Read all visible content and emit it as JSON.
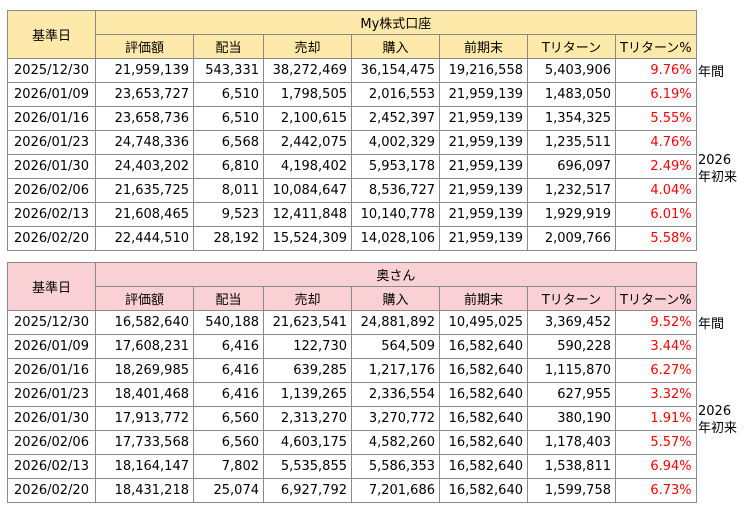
{
  "tables": [
    {
      "title": "My株式口座",
      "date_header": "基準日",
      "columns": [
        "評価額",
        "配当",
        "売却",
        "購入",
        "前期末",
        "Tリターン",
        "Tリターン%"
      ],
      "rows": [
        [
          "2025/12/30",
          "21,959,139",
          "543,331",
          "38,272,469",
          "36,154,475",
          "19,216,558",
          "5,403,906",
          "9.76%"
        ],
        [
          "2026/01/09",
          "23,653,727",
          "6,510",
          "1,798,505",
          "2,016,553",
          "21,959,139",
          "1,483,050",
          "6.19%"
        ],
        [
          "2026/01/16",
          "23,658,736",
          "6,510",
          "2,100,615",
          "2,452,397",
          "21,959,139",
          "1,354,325",
          "5.55%"
        ],
        [
          "2026/01/23",
          "24,748,336",
          "6,568",
          "2,442,075",
          "4,002,329",
          "21,959,139",
          "1,235,511",
          "4.76%"
        ],
        [
          "2026/01/30",
          "24,403,202",
          "6,810",
          "4,198,402",
          "5,953,178",
          "21,959,139",
          "696,097",
          "2.49%"
        ],
        [
          "2026/02/06",
          "21,635,725",
          "8,011",
          "10,084,647",
          "8,536,727",
          "21,959,139",
          "1,232,517",
          "4.04%"
        ],
        [
          "2026/02/13",
          "21,608,465",
          "9,523",
          "12,411,848",
          "10,140,778",
          "21,959,139",
          "1,929,919",
          "6.01%"
        ],
        [
          "2026/02/20",
          "22,444,510",
          "28,192",
          "15,524,309",
          "14,028,106",
          "21,959,139",
          "2,009,766",
          "5.58%"
        ]
      ],
      "note_annual": "年間",
      "note_ytd_year": "2026",
      "note_ytd_label": "年初来"
    },
    {
      "title": "奥さん",
      "date_header": "基準日",
      "columns": [
        "評価額",
        "配当",
        "売却",
        "購入",
        "前期末",
        "Tリターン",
        "Tリターン%"
      ],
      "rows": [
        [
          "2025/12/30",
          "16,582,640",
          "540,188",
          "21,623,541",
          "24,881,892",
          "10,495,025",
          "3,369,452",
          "9.52%"
        ],
        [
          "2026/01/09",
          "17,608,231",
          "6,416",
          "122,730",
          "564,509",
          "16,582,640",
          "590,228",
          "3.44%"
        ],
        [
          "2026/01/16",
          "18,269,985",
          "6,416",
          "639,285",
          "1,217,176",
          "16,582,640",
          "1,115,870",
          "6.27%"
        ],
        [
          "2026/01/23",
          "18,401,468",
          "6,416",
          "1,139,265",
          "2,336,554",
          "16,582,640",
          "627,955",
          "3.32%"
        ],
        [
          "2026/01/30",
          "17,913,772",
          "6,560",
          "2,313,270",
          "3,270,772",
          "16,582,640",
          "380,190",
          "1.91%"
        ],
        [
          "2026/02/06",
          "17,733,568",
          "6,560",
          "4,603,175",
          "4,582,260",
          "16,582,640",
          "1,178,403",
          "5.57%"
        ],
        [
          "2026/02/13",
          "18,164,147",
          "7,802",
          "5,535,855",
          "5,586,353",
          "16,582,640",
          "1,538,811",
          "6.94%"
        ],
        [
          "2026/02/20",
          "18,431,218",
          "25,074",
          "6,927,792",
          "7,201,686",
          "16,582,640",
          "1,599,758",
          "6.73%"
        ]
      ],
      "note_annual": "年間",
      "note_ytd_year": "2026",
      "note_ytd_label": "年初来"
    }
  ]
}
